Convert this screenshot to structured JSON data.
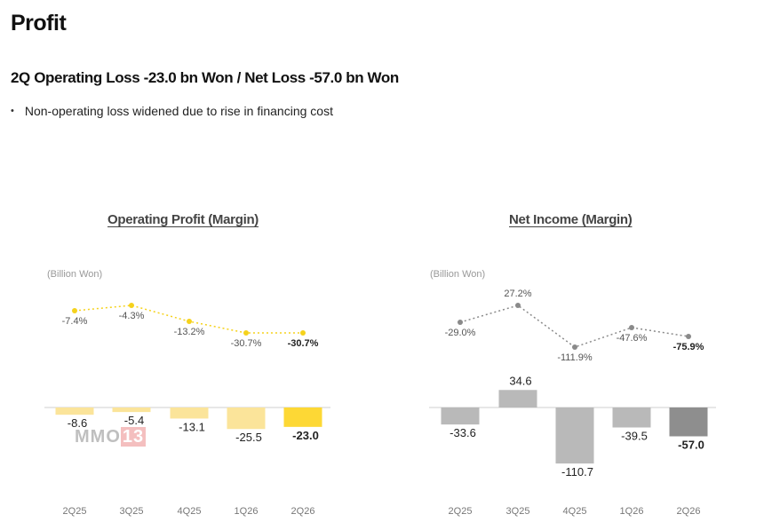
{
  "page": {
    "title": "Profit",
    "headline": "2Q Operating Loss  -23.0 bn Won / Net Loss -57.0 bn Won",
    "bullet": "Non-operating loss widened due to rise in financing cost"
  },
  "watermark": {
    "text": "MMO",
    "num": "13"
  },
  "chart_data": [
    {
      "type": "bar",
      "title": "Operating Profit (Margin)",
      "unit": "(Billion Won)",
      "categories": [
        "2Q25",
        "3Q25",
        "4Q25",
        "1Q26",
        "2Q26"
      ],
      "values": [
        -8.6,
        -5.4,
        -13.1,
        -25.5,
        -23.0
      ],
      "value_labels": [
        "-8.6",
        "-5.4",
        "-13.1",
        "-25.5",
        "-23.0"
      ],
      "margin": {
        "values": [
          -7.4,
          -4.3,
          -13.2,
          -30.7,
          -30.7
        ],
        "labels": [
          "-7.4%",
          "-4.3%",
          "-13.2%",
          "-30.7%",
          "-30.7%"
        ]
      },
      "colors": {
        "bar": "#fbe49a",
        "bar_last": "#fdd835",
        "line": "#f5d21c"
      }
    },
    {
      "type": "bar",
      "title": "Net Income (Margin)",
      "unit": "(Billion Won)",
      "categories": [
        "2Q25",
        "3Q25",
        "4Q25",
        "1Q26",
        "2Q26"
      ],
      "values": [
        -33.6,
        34.6,
        -110.7,
        -39.5,
        -57.0
      ],
      "value_labels": [
        "-33.6",
        "34.6",
        "-110.7",
        "-39.5",
        "-57.0"
      ],
      "margin": {
        "values": [
          -29.0,
          27.2,
          -111.9,
          -47.6,
          -75.9
        ],
        "labels": [
          "-29.0%",
          "27.2%",
          "-111.9%",
          "-47.6%",
          "-75.9%"
        ]
      },
      "colors": {
        "bar": "#b9b9b9",
        "bar_last": "#8e8e8e",
        "line": "#8a8a8a"
      }
    }
  ]
}
